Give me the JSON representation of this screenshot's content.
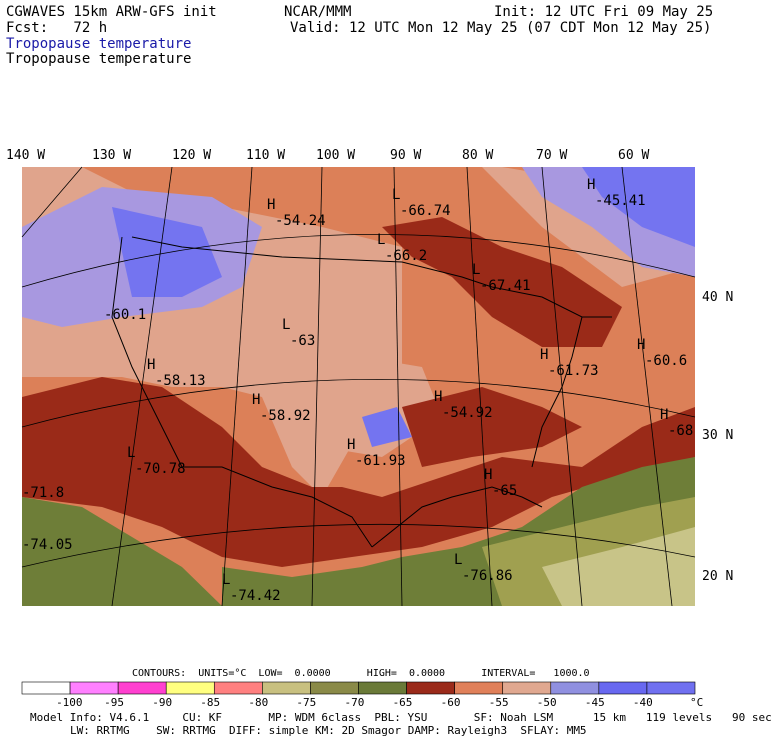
{
  "header": {
    "model": "CGWAVES 15km ARW-GFS init",
    "fcst": "Fcst:   72 h",
    "field1": "Tropopause temperature",
    "field2": "Tropopause temperature",
    "center": "NCAR/MMM",
    "init": "Init: 12 UTC Fri 09 May 25",
    "valid": "Valid: 12 UTC Mon 12 May 25 (07 CDT Mon 12 May 25)"
  },
  "lon_labels": [
    "140 W",
    "130 W",
    "120 W",
    "110 W",
    "100 W",
    "90 W",
    "80 W",
    "70 W",
    "60 W"
  ],
  "lat_labels": [
    "40 N",
    "30 N",
    "20 N"
  ],
  "map_labels": [
    {
      "mark": "H",
      "value": "-54.24"
    },
    {
      "mark": "L",
      "value": "-66.74"
    },
    {
      "mark": "H",
      "value": "-45.41"
    },
    {
      "mark": "L",
      "value": "-66.2"
    },
    {
      "mark": "L",
      "value": "-67.41"
    },
    {
      "mark": "",
      "value": "-60.1"
    },
    {
      "mark": "L",
      "value": "-63"
    },
    {
      "mark": "H",
      "value": "-58.13"
    },
    {
      "mark": "H",
      "value": "-60.6"
    },
    {
      "mark": "H",
      "value": "-58.92"
    },
    {
      "mark": "H",
      "value": "-54.92"
    },
    {
      "mark": "H",
      "value": "-61.73"
    },
    {
      "mark": "H",
      "value": "-68"
    },
    {
      "mark": "H",
      "value": "-61.93"
    },
    {
      "mark": "L",
      "value": "-70.78"
    },
    {
      "mark": "H",
      "value": "-65"
    },
    {
      "mark": "",
      "value": "-71.8"
    },
    {
      "mark": "",
      "value": "-74.05"
    },
    {
      "mark": "L",
      "value": "-76.86"
    },
    {
      "mark": "L",
      "value": "-74.42"
    }
  ],
  "contours": {
    "line": "CONTOURS:  UNITS=°C  LOW=  0.0000      HIGH=  0.0000      INTERVAL=   1000.0"
  },
  "colorbar": {
    "colors": [
      "#ffffff",
      "#ff80ff",
      "#ff40d0",
      "#ffff80",
      "#ff8080",
      "#c8c080",
      "#8a8a48",
      "#6a7a38",
      "#9a2a1a",
      "#e0805a",
      "#e0a890",
      "#9090e0",
      "#6868f0",
      "#7070f0"
    ],
    "ticks": [
      "-100",
      "-95",
      "-90",
      "-85",
      "-80",
      "-75",
      "-70",
      "-65",
      "-60",
      "-55",
      "-50",
      "-45",
      "-40"
    ],
    "unit": "°C"
  },
  "model_info": {
    "line1": "Model Info: V4.6.1     CU: KF       MP: WDM 6class  PBL: YSU       SF: Noah LSM      15 km   119 levels   90 sec",
    "line2": "LW: RRTMG    SW: RRTMG  DIFF: simple KM: 2D Smagor DAMP: Rayleigh3  SFLAY: MM5"
  },
  "palette": {
    "green": "#6e7e38",
    "olive": "#a0a050",
    "lightolive": "#c8c488",
    "darkred": "#9a2a18",
    "salmon": "#dc8058",
    "pink": "#e0a48c",
    "lavender": "#a898e0",
    "blue": "#7474f0"
  }
}
